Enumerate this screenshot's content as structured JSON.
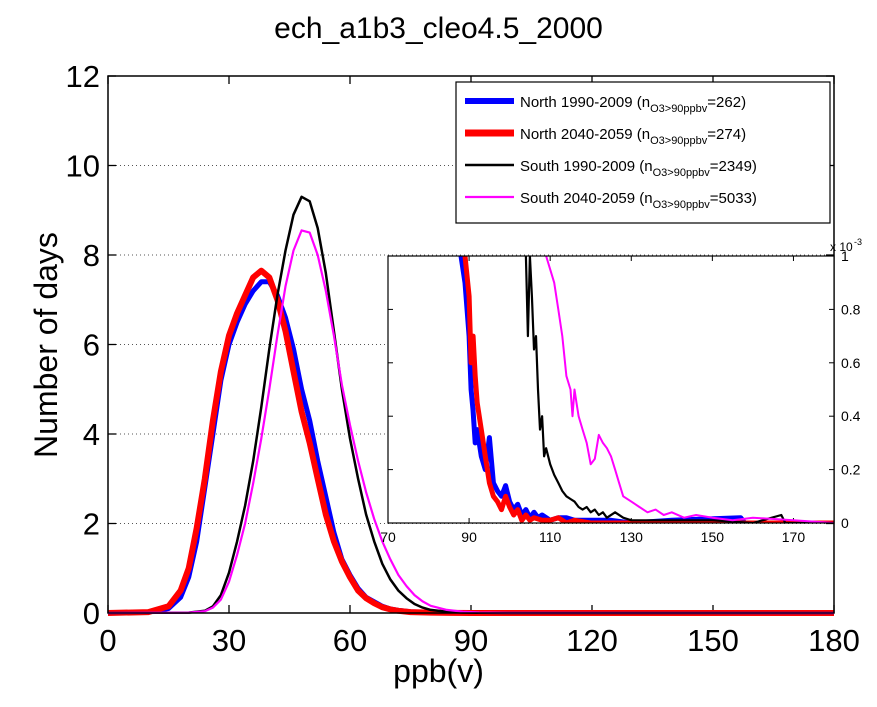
{
  "chart_data": [
    {
      "type": "line",
      "title": "ech_a1b3_cleo4.5_2000",
      "xlabel": "ppb(v)",
      "ylabel": "Number of days",
      "xlim": [
        0,
        180
      ],
      "ylim": [
        0,
        12
      ],
      "xticks": [
        "0",
        "30",
        "60",
        "90",
        "120",
        "150",
        "180"
      ],
      "yticks": [
        "0",
        "2",
        "4",
        "6",
        "8",
        "10",
        "12"
      ],
      "grid": "horizontal dotted",
      "legend_position": "top-right",
      "series": [
        {
          "name": "North 1990-2009",
          "legend_prefix": "North 1990-2009 (n",
          "legend_sub": "O3>90ppbv",
          "legend_suffix": "=262)",
          "color": "#0000ff",
          "x": [
            0,
            10,
            15,
            18,
            20,
            22,
            24,
            26,
            28,
            30,
            32,
            34,
            36,
            38,
            40,
            42,
            44,
            46,
            48,
            50,
            52,
            54,
            56,
            58,
            60,
            62,
            64,
            66,
            68,
            70,
            72,
            75,
            80,
            85,
            90,
            180
          ],
          "y": [
            0,
            0.02,
            0.1,
            0.35,
            0.8,
            1.6,
            2.8,
            4.0,
            5.2,
            6.0,
            6.5,
            6.9,
            7.2,
            7.4,
            7.4,
            7.1,
            6.6,
            5.9,
            5.0,
            4.3,
            3.4,
            2.6,
            1.8,
            1.2,
            0.85,
            0.55,
            0.35,
            0.25,
            0.15,
            0.09,
            0.06,
            0.03,
            0.01,
            0.005,
            0.002,
            0
          ]
        },
        {
          "name": "North 2040-2059",
          "legend_prefix": "North 2040-2059 (n",
          "legend_sub": "O3>90ppbv",
          "legend_suffix": "=274)",
          "color": "#ff0000",
          "x": [
            0,
            10,
            15,
            18,
            20,
            22,
            24,
            26,
            28,
            30,
            32,
            34,
            36,
            38,
            40,
            42,
            44,
            46,
            48,
            50,
            52,
            54,
            56,
            58,
            60,
            62,
            64,
            66,
            68,
            70,
            72,
            75,
            80,
            85,
            90,
            180
          ],
          "y": [
            0,
            0.02,
            0.15,
            0.5,
            1.0,
            1.9,
            3.0,
            4.3,
            5.4,
            6.2,
            6.7,
            7.1,
            7.5,
            7.65,
            7.5,
            7.0,
            6.3,
            5.4,
            4.5,
            3.8,
            3.0,
            2.2,
            1.6,
            1.15,
            0.8,
            0.5,
            0.33,
            0.22,
            0.13,
            0.08,
            0.05,
            0.02,
            0.008,
            0.003,
            0.001,
            0
          ]
        },
        {
          "name": "South 1990-2009",
          "legend_prefix": "South 1990-2009 (n",
          "legend_sub": "O3>90ppbv",
          "legend_suffix": "=2349)",
          "color": "#000000",
          "x": [
            0,
            20,
            24,
            26,
            28,
            30,
            32,
            34,
            36,
            38,
            40,
            42,
            44,
            46,
            48,
            50,
            52,
            54,
            56,
            58,
            60,
            62,
            64,
            66,
            68,
            70,
            72,
            74,
            76,
            78,
            80,
            84,
            88,
            92,
            100,
            180
          ],
          "y": [
            0,
            0.01,
            0.05,
            0.15,
            0.4,
            0.9,
            1.6,
            2.4,
            3.4,
            4.6,
            5.9,
            7.1,
            8.1,
            8.9,
            9.3,
            9.2,
            8.6,
            7.6,
            6.3,
            5.0,
            3.9,
            3.0,
            2.2,
            1.6,
            1.1,
            0.75,
            0.5,
            0.33,
            0.2,
            0.12,
            0.07,
            0.03,
            0.012,
            0.005,
            0.001,
            0
          ]
        },
        {
          "name": "South 2040-2059",
          "legend_prefix": "South 2040-2059 (n",
          "legend_sub": "O3>90ppbv",
          "legend_suffix": "=5033)",
          "color": "#ff00ff",
          "x": [
            0,
            20,
            24,
            26,
            28,
            30,
            32,
            34,
            36,
            38,
            40,
            42,
            44,
            46,
            48,
            50,
            52,
            54,
            56,
            58,
            60,
            62,
            64,
            66,
            68,
            70,
            72,
            74,
            76,
            78,
            80,
            84,
            88,
            92,
            100,
            180
          ],
          "y": [
            0,
            0.01,
            0.04,
            0.12,
            0.3,
            0.7,
            1.3,
            2.0,
            2.9,
            3.9,
            5.0,
            6.2,
            7.3,
            8.1,
            8.55,
            8.5,
            8.0,
            7.2,
            6.2,
            5.1,
            4.2,
            3.4,
            2.7,
            2.1,
            1.6,
            1.2,
            0.85,
            0.6,
            0.4,
            0.26,
            0.16,
            0.07,
            0.03,
            0.012,
            0.003,
            0
          ]
        }
      ]
    },
    {
      "type": "line",
      "title": "",
      "xlim": [
        70,
        180
      ],
      "ylim": [
        0,
        0.001
      ],
      "xticks": [
        "70",
        "90",
        "110",
        "130",
        "150",
        "170"
      ],
      "yticks": [
        "0",
        "0.2",
        "0.4",
        "0.6",
        "0.8",
        "1"
      ],
      "yscale_label": "x 10",
      "yscale_exp": "-3",
      "series": [
        {
          "color": "#0000ff",
          "x": [
            88,
            89,
            90,
            90.5,
            91,
            91.5,
            92,
            93,
            94,
            95,
            96,
            97,
            98,
            99,
            100,
            101,
            102,
            103,
            104,
            105,
            106,
            107,
            108,
            110,
            112,
            114,
            116,
            118,
            120,
            125,
            130,
            140,
            157,
            158,
            160,
            180
          ],
          "y": [
            0.001,
            0.0009,
            0.0007,
            0.0005,
            0.00042,
            0.0003,
            0.00035,
            0.00025,
            0.0002,
            0.00032,
            0.00015,
            0.00012,
            0.0001,
            0.00014,
            8e-05,
            5e-05,
            7e-05,
            3e-05,
            5e-05,
            2e-05,
            4e-05,
            2e-05,
            3e-05,
            1e-05,
            2e-05,
            2e-05,
            1e-05,
            1e-05,
            1e-05,
            1e-05,
            0,
            1e-05,
            2e-05,
            0,
            0,
            0
          ]
        },
        {
          "color": "#ff0000",
          "x": [
            89,
            90,
            90.5,
            91,
            91.5,
            92,
            93,
            94,
            95,
            96,
            97,
            98,
            99,
            100,
            101,
            102,
            103,
            104,
            105,
            106,
            108,
            110,
            112,
            114,
            116,
            120,
            130,
            180
          ],
          "y": [
            0.001,
            0.00085,
            0.0006,
            0.0007,
            0.00055,
            0.00045,
            0.00035,
            0.00025,
            0.00015,
            0.0001,
            8e-05,
            5e-05,
            0.0001,
            6e-05,
            3e-05,
            5e-05,
            1e-05,
            3e-05,
            1e-05,
            2e-05,
            1e-05,
            1e-05,
            2e-05,
            0,
            1e-05,
            0,
            0,
            0
          ]
        },
        {
          "color": "#000000",
          "x": [
            104,
            104.5,
            105,
            105.5,
            106,
            106.5,
            107,
            107.5,
            108,
            108.5,
            109,
            110,
            111,
            112,
            113,
            114,
            115,
            116,
            117,
            118,
            119,
            120,
            121,
            122,
            123,
            124,
            126,
            128,
            130,
            134,
            140,
            150,
            160,
            167,
            168,
            180
          ],
          "y": [
            0.001,
            0.0007,
            0.001,
            0.00085,
            0.00065,
            0.0007,
            0.0005,
            0.00035,
            0.0004,
            0.00025,
            0.00028,
            0.00022,
            0.00018,
            0.00015,
            0.00012,
            0.0001,
            9e-05,
            8e-05,
            6e-05,
            5e-05,
            6e-05,
            4e-05,
            5e-05,
            3e-05,
            4e-05,
            2e-05,
            4e-05,
            2e-05,
            1e-05,
            1e-05,
            1e-05,
            1e-05,
            0,
            3e-05,
            0,
            0
          ]
        },
        {
          "color": "#ff00ff",
          "x": [
            109,
            110,
            111,
            112,
            113,
            114,
            115,
            115.5,
            116,
            116.5,
            117,
            118,
            119,
            120,
            121,
            122,
            123,
            124,
            125,
            126,
            127,
            128,
            130,
            132,
            134,
            136,
            138,
            140,
            143,
            146,
            150,
            155,
            160,
            170,
            180
          ],
          "y": [
            0.001,
            0.00095,
            0.0009,
            0.0008,
            0.0007,
            0.00055,
            0.0005,
            0.0004,
            0.0005,
            0.00045,
            0.0004,
            0.00035,
            0.0003,
            0.00022,
            0.00024,
            0.00033,
            0.0003,
            0.00028,
            0.00025,
            0.0002,
            0.00015,
            0.0001,
            8e-05,
            6e-05,
            4e-05,
            5e-05,
            3e-05,
            4e-05,
            2e-05,
            3e-05,
            2e-05,
            1e-05,
            2e-05,
            1e-05,
            0
          ]
        }
      ]
    }
  ]
}
